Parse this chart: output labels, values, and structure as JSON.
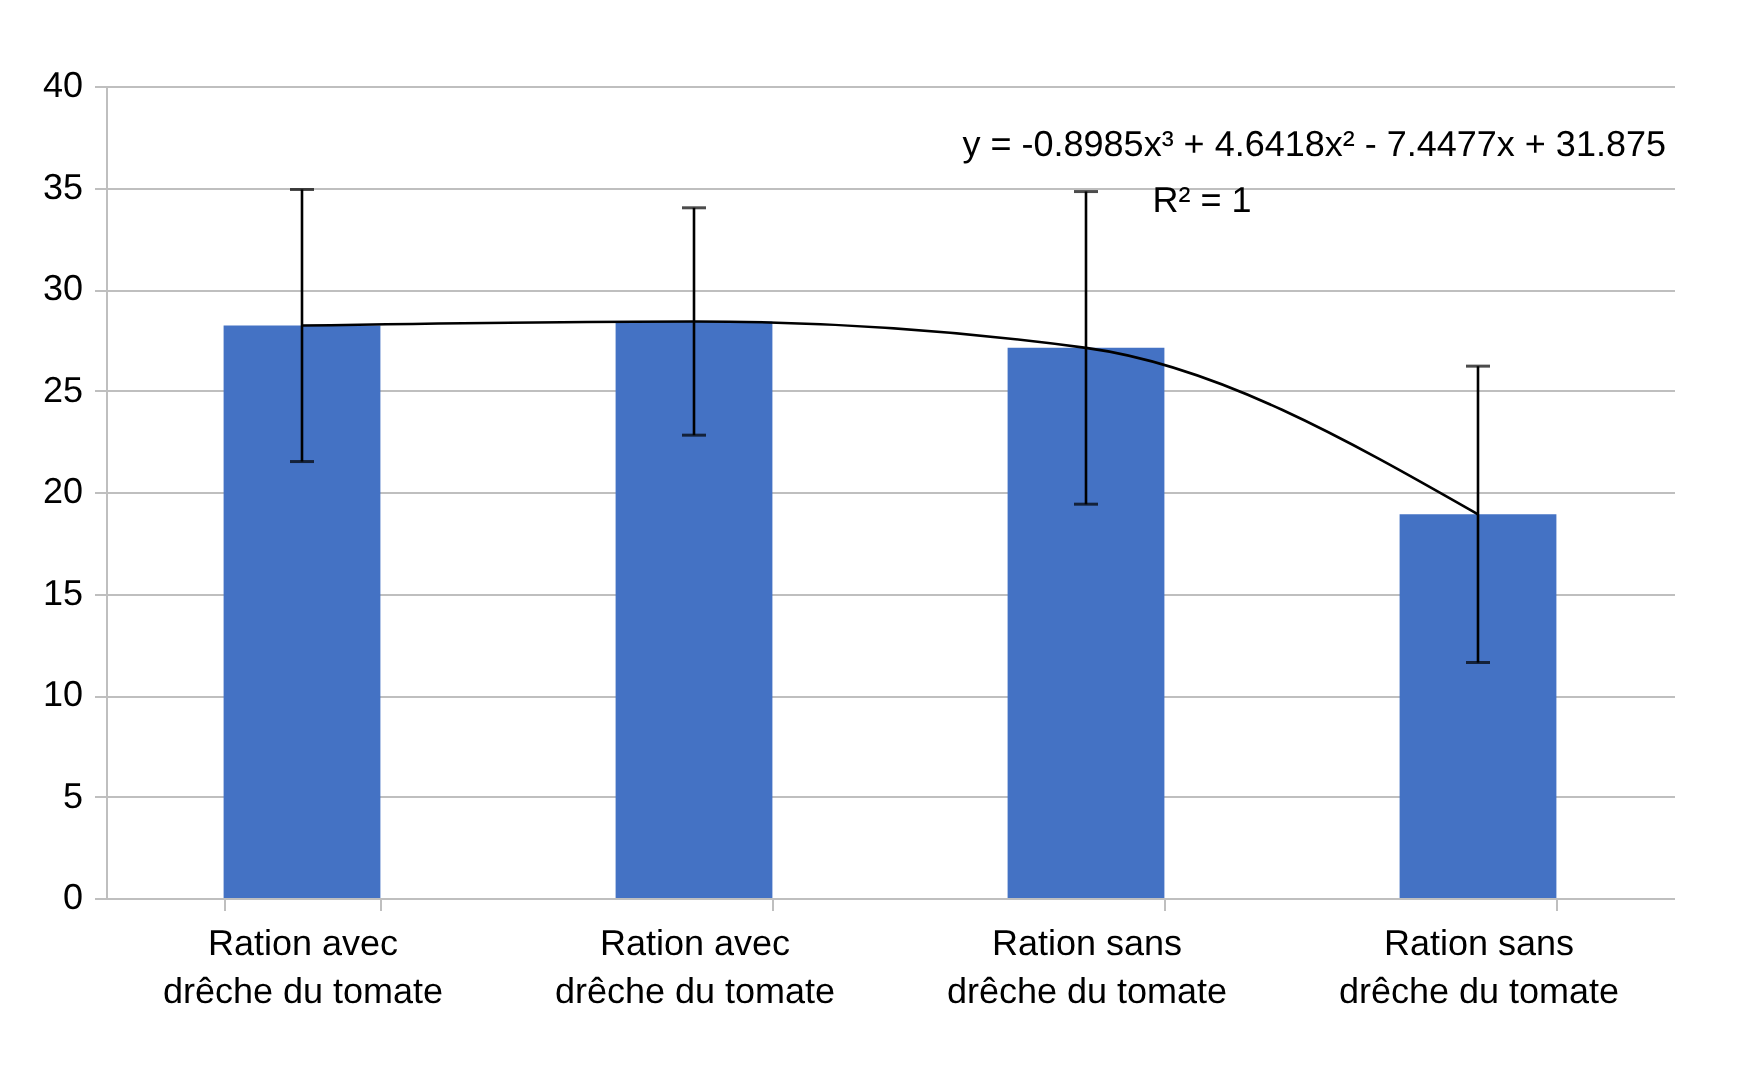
{
  "chart_data": {
    "type": "bar",
    "categories": [
      "Ration avec drêche du tomate",
      "Ration avec drêche du tomate",
      "Ration sans drêche du tomate",
      "Ration sans drêche du tomate"
    ],
    "series": [
      {
        "color": "#4472c4",
        "values": [
          28.2,
          28.4,
          27.1,
          18.9
        ],
        "errors": [
          6.7,
          5.6,
          7.7,
          7.3
        ]
      },
      {
        "type": "line",
        "color": "#000000",
        "values": [
          28.2,
          28.4,
          27.1,
          18.9
        ]
      }
    ],
    "ylim": [
      0,
      40
    ],
    "yticks": [
      0,
      5,
      10,
      15,
      20,
      25,
      30,
      35,
      40
    ],
    "grid": "y",
    "annotations": [
      "y = -0.8985x³ + 4.6418x² - 7.4477x + 31.875",
      "R² = 1"
    ]
  }
}
